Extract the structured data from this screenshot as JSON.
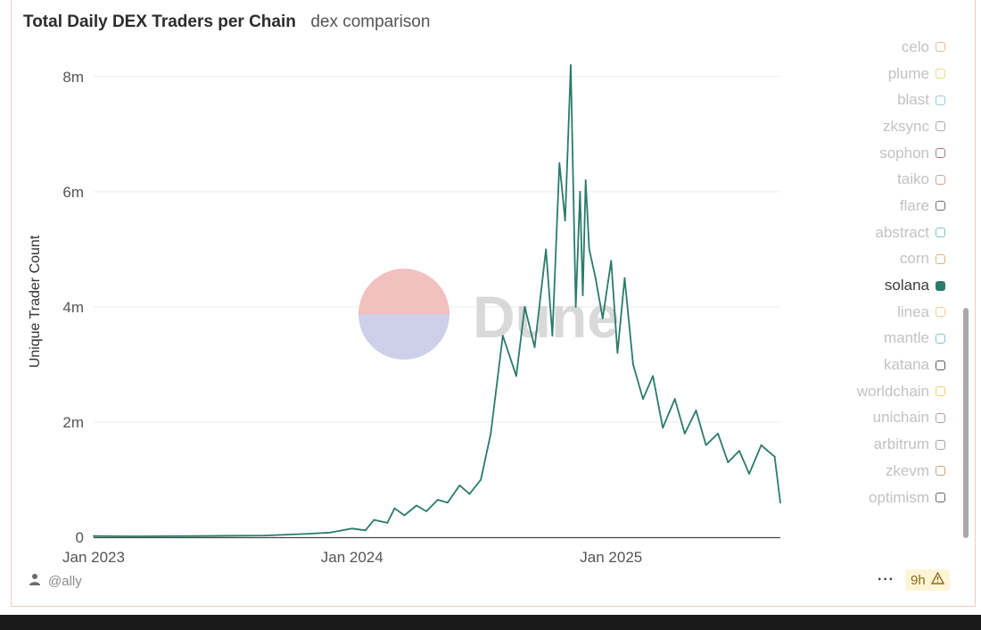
{
  "header": {
    "title": "Total Daily DEX Traders per Chain",
    "subtitle": "dex comparison"
  },
  "legend": [
    {
      "label": "celo",
      "color": "#e9b99a",
      "active": false
    },
    {
      "label": "plume",
      "color": "#ecd98a",
      "active": false
    },
    {
      "label": "blast",
      "color": "#8ecfe0",
      "active": false
    },
    {
      "label": "zksync",
      "color": "#a8a8a8",
      "active": false
    },
    {
      "label": "sophon",
      "color": "#a07f86",
      "active": false
    },
    {
      "label": "taiko",
      "color": "#d1a39a",
      "active": false
    },
    {
      "label": "flare",
      "color": "#707070",
      "active": false
    },
    {
      "label": "abstract",
      "color": "#86c0bf",
      "active": false
    },
    {
      "label": "corn",
      "color": "#e0b36b",
      "active": false
    },
    {
      "label": "solana",
      "color": "#2a7b6a",
      "active": true
    },
    {
      "label": "linea",
      "color": "#e9d48c",
      "active": false
    },
    {
      "label": "mantle",
      "color": "#7fc8d8",
      "active": false
    },
    {
      "label": "katana",
      "color": "#5a5a5a",
      "active": false
    },
    {
      "label": "worldchain",
      "color": "#f0d070",
      "active": false
    },
    {
      "label": "unichain",
      "color": "#b1a1a8",
      "active": false
    },
    {
      "label": "arbitrum",
      "color": "#9ea6b0",
      "active": false
    },
    {
      "label": "zkevm",
      "color": "#c9a57a",
      "active": false
    },
    {
      "label": "optimism",
      "color": "#666666",
      "active": false
    }
  ],
  "footer": {
    "user": "@ally",
    "more": "···",
    "age": "9h",
    "user_icon": "user-icon",
    "warning_icon": "warning-icon"
  },
  "colors": {
    "series": "#2a7b6a",
    "grid": "#ececec",
    "axis": "#555555",
    "watermark_top": "#f3c0c0",
    "watermark_bottom": "#cdd0e8",
    "watermark_text": "#d9d9d9"
  },
  "chart_data": {
    "type": "line",
    "title": "Total Daily DEX Traders per Chain",
    "subtitle": "dex comparison",
    "xlabel": "",
    "ylabel": "Unique Trader Count",
    "yticks": [
      0,
      2000000,
      4000000,
      6000000,
      8000000
    ],
    "ytick_labels": [
      "0",
      "2m",
      "4m",
      "6m",
      "8m"
    ],
    "ylim": [
      0,
      8400000
    ],
    "xticks": [
      "2023-01-01",
      "2024-01-01",
      "2025-01-01"
    ],
    "xtick_labels": [
      "Jan 2023",
      "Jan 2024",
      "Jan 2025"
    ],
    "xlim": [
      "2023-01-01",
      "2025-08-28"
    ],
    "grid": true,
    "legend_position": "right",
    "watermark": "Dune",
    "series": [
      {
        "name": "solana",
        "x": [
          "2023-01-01",
          "2023-03-01",
          "2023-06-01",
          "2023-09-01",
          "2023-11-01",
          "2023-12-01",
          "2024-01-01",
          "2024-01-20",
          "2024-02-01",
          "2024-02-20",
          "2024-03-01",
          "2024-03-15",
          "2024-04-01",
          "2024-04-15",
          "2024-05-01",
          "2024-05-15",
          "2024-06-01",
          "2024-06-15",
          "2024-07-01",
          "2024-07-15",
          "2024-08-01",
          "2024-08-20",
          "2024-09-01",
          "2024-09-15",
          "2024-10-01",
          "2024-10-10",
          "2024-10-20",
          "2024-10-28",
          "2024-11-05",
          "2024-11-12",
          "2024-11-18",
          "2024-11-22",
          "2024-11-26",
          "2024-12-01",
          "2024-12-10",
          "2024-12-20",
          "2025-01-01",
          "2025-01-10",
          "2025-01-20",
          "2025-02-01",
          "2025-02-15",
          "2025-03-01",
          "2025-03-15",
          "2025-04-01",
          "2025-04-15",
          "2025-05-01",
          "2025-05-15",
          "2025-06-01",
          "2025-06-15",
          "2025-07-01",
          "2025-07-15",
          "2025-08-01",
          "2025-08-10",
          "2025-08-20",
          "2025-08-28"
        ],
        "values": [
          20000,
          15000,
          20000,
          30000,
          60000,
          80000,
          150000,
          120000,
          300000,
          250000,
          500000,
          380000,
          550000,
          450000,
          650000,
          600000,
          900000,
          750000,
          1000000,
          1800000,
          3500000,
          2800000,
          4000000,
          3300000,
          5000000,
          3500000,
          6500000,
          5500000,
          8200000,
          4000000,
          6000000,
          4200000,
          6200000,
          5000000,
          4500000,
          3800000,
          4800000,
          3200000,
          4500000,
          3000000,
          2400000,
          2800000,
          1900000,
          2400000,
          1800000,
          2200000,
          1600000,
          1800000,
          1300000,
          1500000,
          1100000,
          1600000,
          1500000,
          1400000,
          600000
        ]
      }
    ]
  }
}
